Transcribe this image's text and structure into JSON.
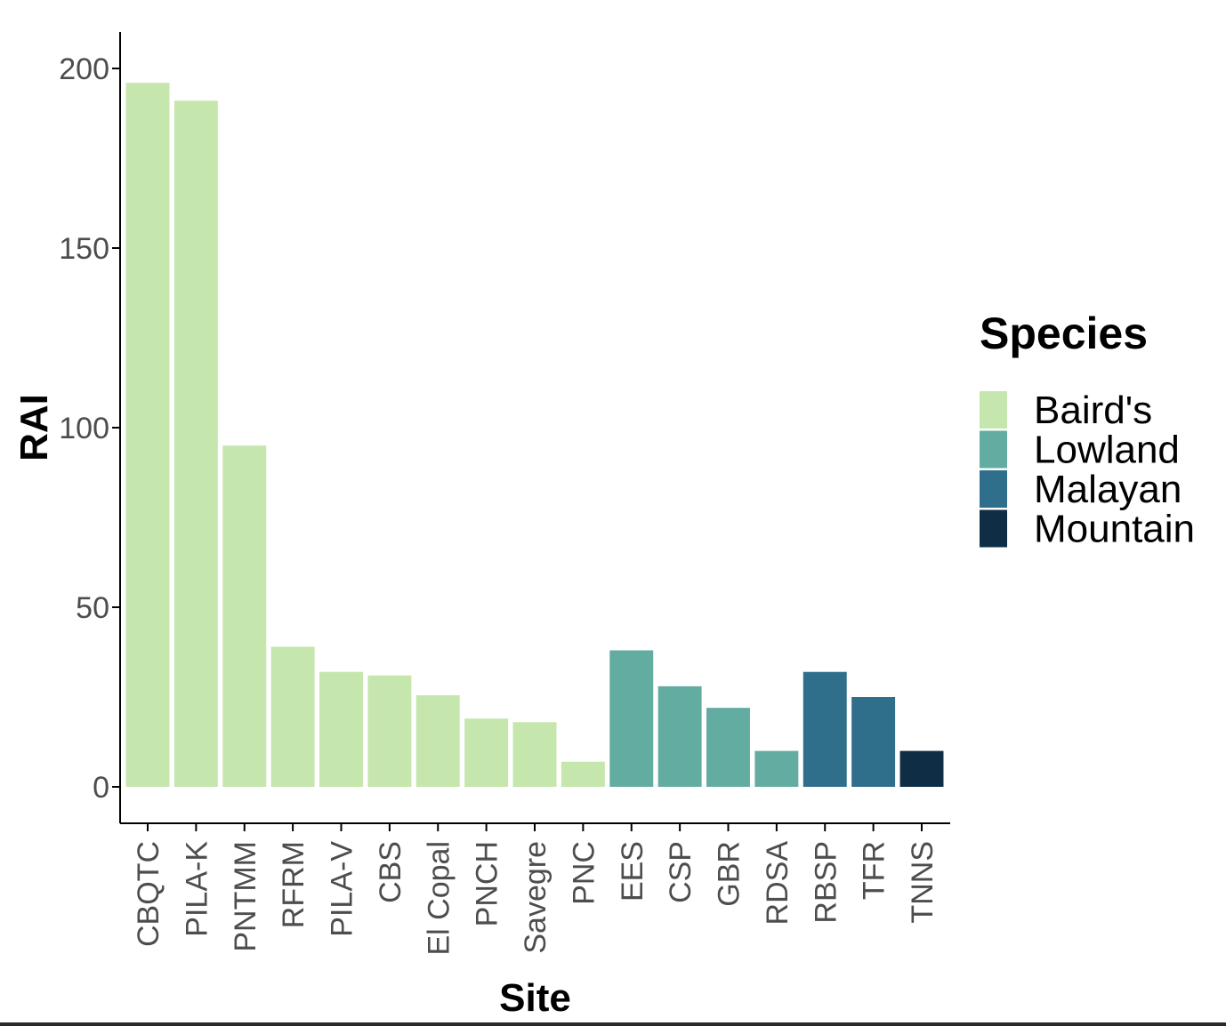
{
  "chart_data": {
    "type": "bar",
    "xlabel": "Site",
    "ylabel": "RAI",
    "ylim": [
      0,
      210
    ],
    "yticks": [
      0,
      50,
      100,
      150,
      200
    ],
    "grid": false,
    "legend": {
      "title": "Species",
      "placement": "right",
      "entries": [
        {
          "name": "Baird's",
          "color": "#c5e6ac"
        },
        {
          "name": "Lowland",
          "color": "#63aca2"
        },
        {
          "name": "Malayan",
          "color": "#306f8b"
        },
        {
          "name": "Mountain",
          "color": "#0f2e45"
        }
      ]
    },
    "categories": [
      "CBQTC",
      "PILA-K",
      "PNTMM",
      "RFRM",
      "PILA-V",
      "CBS",
      "El Copal",
      "PNCH",
      "Savegre",
      "PNC",
      "EES",
      "CSP",
      "GBR",
      "RDSA",
      "RBSP",
      "TFR",
      "TNNS"
    ],
    "values": [
      196,
      191,
      95,
      39,
      32,
      31,
      25.5,
      19,
      18,
      7,
      38,
      28,
      22,
      10,
      32,
      25,
      10
    ],
    "species": [
      "Baird's",
      "Baird's",
      "Baird's",
      "Baird's",
      "Baird's",
      "Baird's",
      "Baird's",
      "Baird's",
      "Baird's",
      "Baird's",
      "Lowland",
      "Lowland",
      "Lowland",
      "Lowland",
      "Malayan",
      "Malayan",
      "Mountain"
    ]
  }
}
